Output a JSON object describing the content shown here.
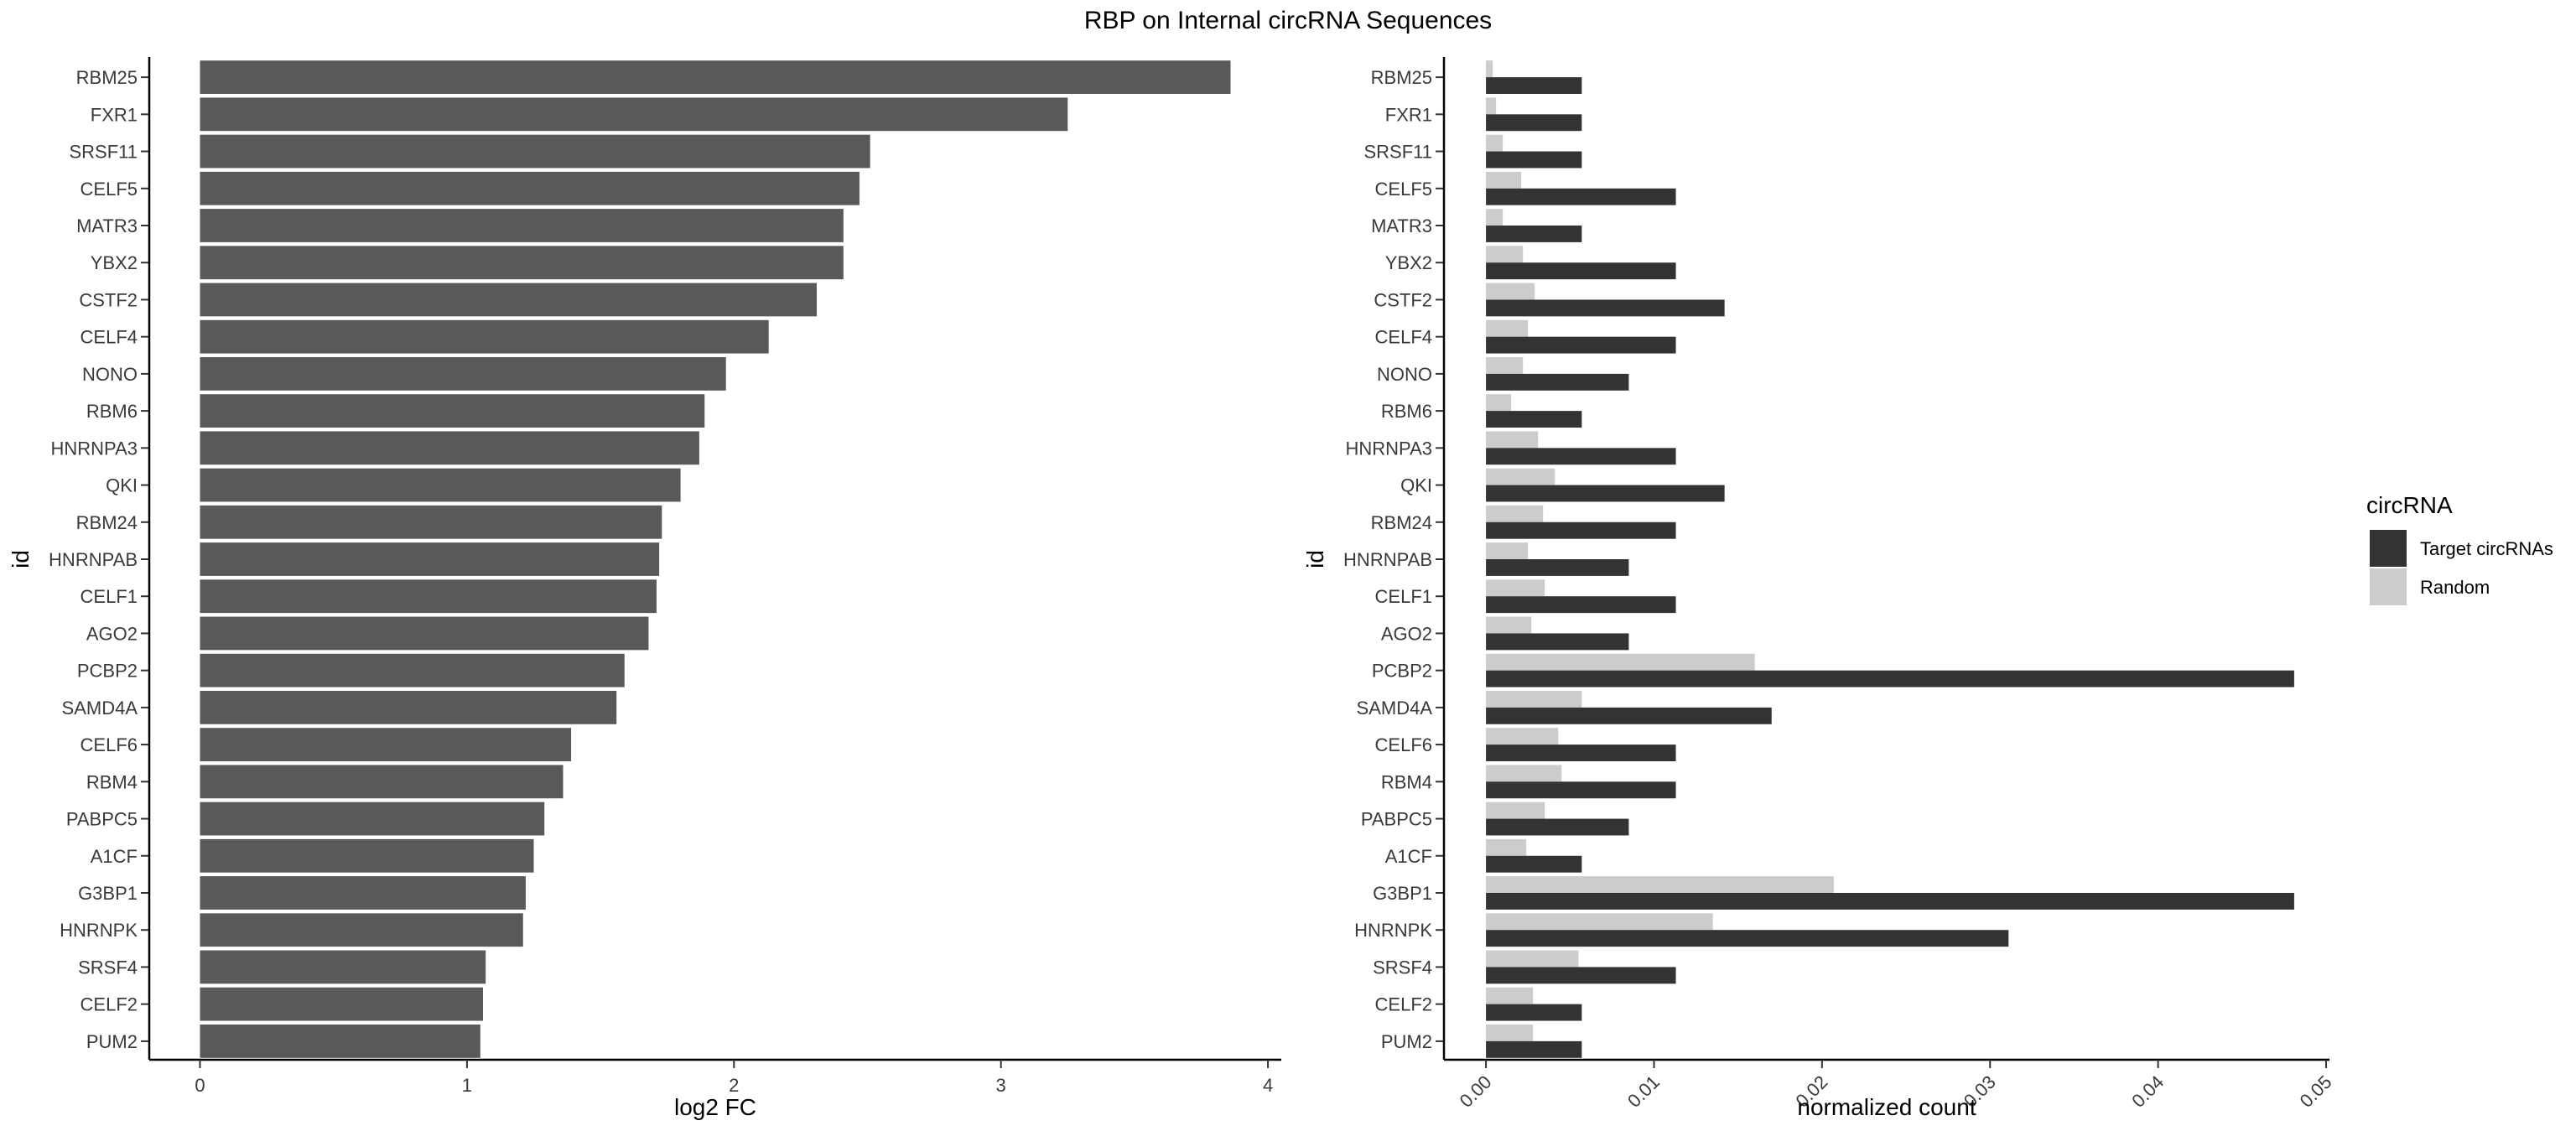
{
  "title": "RBP on Internal circRNA Sequences",
  "chart_data": [
    {
      "type": "bar",
      "orientation": "horizontal",
      "xlabel": "log2 FC",
      "ylabel": "id",
      "xlim": [
        -0.19,
        4.05
      ],
      "xticks": [
        0,
        1,
        2,
        3,
        4
      ],
      "grid": false,
      "categories": [
        "RBM25",
        "FXR1",
        "SRSF11",
        "CELF5",
        "MATR3",
        "YBX2",
        "CSTF2",
        "CELF4",
        "NONO",
        "RBM6",
        "HNRNPA3",
        "QKI",
        "RBM24",
        "HNRNPAB",
        "CELF1",
        "AGO2",
        "PCBP2",
        "SAMD4A",
        "CELF6",
        "RBM4",
        "PABPC5",
        "A1CF",
        "G3BP1",
        "HNRNPK",
        "SRSF4",
        "CELF2",
        "PUM2"
      ],
      "values": [
        3.86,
        3.25,
        2.51,
        2.47,
        2.41,
        2.41,
        2.31,
        2.13,
        1.97,
        1.89,
        1.87,
        1.8,
        1.73,
        1.72,
        1.71,
        1.68,
        1.59,
        1.56,
        1.39,
        1.36,
        1.29,
        1.25,
        1.22,
        1.21,
        1.07,
        1.06,
        1.05
      ],
      "color": "#595959"
    },
    {
      "type": "bar",
      "orientation": "horizontal",
      "grouped": true,
      "xlabel": "normalized count",
      "ylabel": "id",
      "xlim": [
        -0.0025,
        0.0502
      ],
      "xticks": [
        "0.00",
        "0.01",
        "0.02",
        "0.03",
        "0.04",
        "0.05"
      ],
      "xtick_rotation": -45,
      "grid": false,
      "legend": {
        "title": "circRNA",
        "position": "right"
      },
      "categories": [
        "RBM25",
        "FXR1",
        "SRSF11",
        "CELF5",
        "MATR3",
        "YBX2",
        "CSTF2",
        "CELF4",
        "NONO",
        "RBM6",
        "HNRNPA3",
        "QKI",
        "RBM24",
        "HNRNPAB",
        "CELF1",
        "AGO2",
        "PCBP2",
        "SAMD4A",
        "CELF6",
        "RBM4",
        "PABPC5",
        "A1CF",
        "G3BP1",
        "HNRNPK",
        "SRSF4",
        "CELF2",
        "PUM2"
      ],
      "series": [
        {
          "name": "Target circRNAs",
          "color": "#333333",
          "values": [
            0.0057,
            0.0057,
            0.0057,
            0.0113,
            0.0057,
            0.0113,
            0.0142,
            0.0113,
            0.0085,
            0.0057,
            0.0113,
            0.0142,
            0.0113,
            0.0085,
            0.0113,
            0.0085,
            0.0481,
            0.017,
            0.0113,
            0.0113,
            0.0085,
            0.0057,
            0.0481,
            0.0311,
            0.0113,
            0.0057,
            0.0057
          ]
        },
        {
          "name": "Random",
          "color": "#cccccc",
          "values": [
            0.0004,
            0.0006,
            0.001,
            0.0021,
            0.001,
            0.0022,
            0.0029,
            0.0025,
            0.0022,
            0.0015,
            0.0031,
            0.0041,
            0.0034,
            0.0025,
            0.0035,
            0.0027,
            0.016,
            0.0057,
            0.0043,
            0.0045,
            0.0035,
            0.0024,
            0.0207,
            0.0135,
            0.0055,
            0.0028,
            0.0028
          ]
        }
      ]
    }
  ]
}
